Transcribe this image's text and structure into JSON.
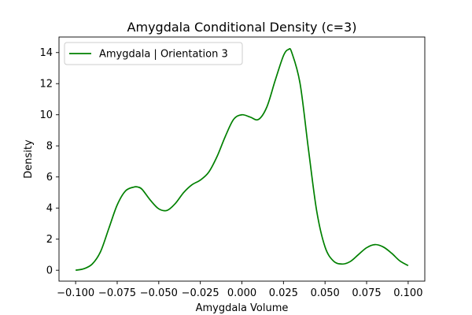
{
  "chart_data": {
    "type": "line",
    "title": "Amygdala Conditional Density (c=3)",
    "xlabel": "Amygdala Volume",
    "ylabel": "Density",
    "xlim": [
      -0.11,
      0.11
    ],
    "ylim": [
      -0.7,
      15
    ],
    "xticks": [
      -0.1,
      -0.075,
      -0.05,
      -0.025,
      0.0,
      0.025,
      0.05,
      0.075,
      0.1
    ],
    "xtick_labels": [
      "−0.100",
      "−0.075",
      "−0.050",
      "−0.025",
      "0.000",
      "0.025",
      "0.050",
      "0.075",
      "0.100"
    ],
    "yticks": [
      0,
      2,
      4,
      6,
      8,
      10,
      12,
      14
    ],
    "ytick_labels": [
      "0",
      "2",
      "4",
      "6",
      "8",
      "10",
      "12",
      "14"
    ],
    "grid": false,
    "legend": {
      "position": "upper left"
    },
    "series": [
      {
        "name": "Amygdala | Orientation 3",
        "color": "#008000",
        "x": [
          -0.1,
          -0.095,
          -0.09,
          -0.085,
          -0.08,
          -0.075,
          -0.07,
          -0.065,
          -0.0625,
          -0.06,
          -0.055,
          -0.05,
          -0.045,
          -0.04,
          -0.035,
          -0.03,
          -0.025,
          -0.02,
          -0.015,
          -0.01,
          -0.005,
          0.0,
          0.005,
          0.01,
          0.015,
          0.02,
          0.025,
          0.028,
          0.03,
          0.035,
          0.04,
          0.045,
          0.05,
          0.055,
          0.06,
          0.065,
          0.07,
          0.075,
          0.08,
          0.085,
          0.09,
          0.095,
          0.1
        ],
        "y": [
          0.0,
          0.1,
          0.4,
          1.2,
          2.7,
          4.2,
          5.1,
          5.35,
          5.35,
          5.2,
          4.5,
          3.95,
          3.85,
          4.3,
          5.0,
          5.5,
          5.8,
          6.3,
          7.3,
          8.6,
          9.7,
          10.0,
          9.85,
          9.7,
          10.5,
          12.2,
          13.8,
          14.2,
          14.0,
          12.0,
          7.8,
          3.8,
          1.5,
          0.6,
          0.4,
          0.55,
          1.0,
          1.45,
          1.65,
          1.5,
          1.1,
          0.6,
          0.3
        ]
      }
    ]
  }
}
